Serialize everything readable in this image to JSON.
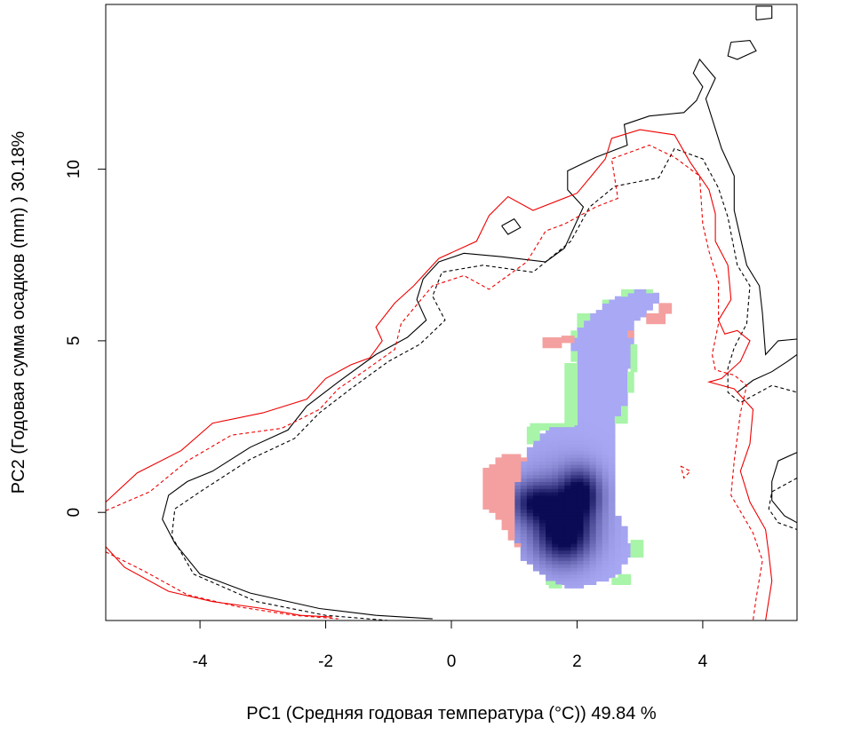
{
  "chart_data": {
    "type": "heatmap",
    "title": "",
    "xlabel": "PC1 (Средняя годовая температура (°C)) 49.84 %",
    "ylabel": "PC2 (Годовая сумма осадков  (mm) ) 30.18%",
    "xlim": [
      -5.5,
      5.5
    ],
    "ylim": [
      -3.15,
      14.8
    ],
    "xticks": [
      -4,
      -2,
      0,
      2,
      4
    ],
    "xtick_labels": [
      "-4",
      "-2",
      "0",
      "2",
      "4"
    ],
    "yticks": [
      0,
      5,
      10
    ],
    "ytick_labels": [
      "0",
      "5",
      "10"
    ],
    "grid": false,
    "legend": "none",
    "colors": {
      "contour_black": "#000000",
      "contour_red": "#ee0000",
      "only_a_cells": "#f4a0a0",
      "only_b_cells": "#a8f4a8",
      "overlap_low": "#a8a8f4",
      "overlap_high": "#0a0a55"
    },
    "contours": [
      {
        "color": "#000000",
        "dash": "solid",
        "points": [
          [
            -0.3,
            -3.1
          ],
          [
            -1.2,
            -3.0
          ],
          [
            -2.1,
            -2.8
          ],
          [
            -3.2,
            -2.35
          ],
          [
            -4,
            -1.8
          ],
          [
            -4.4,
            -0.9
          ],
          [
            -4.6,
            -0.2
          ],
          [
            -4.5,
            0.5
          ],
          [
            -4.2,
            0.9
          ],
          [
            -3.8,
            1.2
          ],
          [
            -3.2,
            1.9
          ],
          [
            -2.6,
            2.4
          ],
          [
            -2.3,
            3.1
          ],
          [
            -1.8,
            3.8
          ],
          [
            -1.2,
            4.6
          ],
          [
            -0.7,
            5.1
          ],
          [
            -0.4,
            5.6
          ],
          [
            -0.55,
            6.2
          ],
          [
            -0.45,
            6.8
          ],
          [
            -0.2,
            7.3
          ],
          [
            0.2,
            7.55
          ],
          [
            0.8,
            7.45
          ],
          [
            1.5,
            7.3
          ],
          [
            1.8,
            7.7
          ],
          [
            2.1,
            8.9
          ],
          [
            1.85,
            9.4
          ],
          [
            1.85,
            9.95
          ],
          [
            2.3,
            10.35
          ],
          [
            2.8,
            10.7
          ],
          [
            2.75,
            11.3
          ],
          [
            3.15,
            11.55
          ],
          [
            3.7,
            11.65
          ],
          [
            3.9,
            12.0
          ],
          [
            4.0,
            12.4
          ],
          [
            3.85,
            12.8
          ],
          [
            3.95,
            13.2
          ],
          [
            4.2,
            12.65
          ],
          [
            4.05,
            12.05
          ],
          [
            4.3,
            10.6
          ],
          [
            4.5,
            9.8
          ],
          [
            4.5,
            8.8
          ],
          [
            4.7,
            7.2
          ],
          [
            4.9,
            6.6
          ],
          [
            4.95,
            5.8
          ],
          [
            5.0,
            4.6
          ],
          [
            5.2,
            5.0
          ],
          [
            5.5,
            5.05
          ]
        ]
      },
      {
        "color": "#000000",
        "dash": "solid",
        "points": [
          [
            4.45,
            13.7
          ],
          [
            4.75,
            13.75
          ],
          [
            4.85,
            13.45
          ],
          [
            4.55,
            13.2
          ],
          [
            4.4,
            13.3
          ],
          [
            4.45,
            13.7
          ]
        ]
      },
      {
        "color": "#000000",
        "dash": "solid",
        "points": [
          [
            4.85,
            14.35
          ],
          [
            5.1,
            14.4
          ],
          [
            5.1,
            14.75
          ],
          [
            4.85,
            14.75
          ],
          [
            4.85,
            14.35
          ]
        ]
      },
      {
        "color": "#000000",
        "dash": "solid",
        "points": [
          [
            0.8,
            8.35
          ],
          [
            1.0,
            8.55
          ],
          [
            1.1,
            8.3
          ],
          [
            0.9,
            8.1
          ],
          [
            0.8,
            8.35
          ]
        ]
      },
      {
        "color": "#000000",
        "dash": "solid",
        "points": [
          [
            4.55,
            3.5
          ],
          [
            4.8,
            3.85
          ],
          [
            5.1,
            4.1
          ],
          [
            5.35,
            4.4
          ],
          [
            5.5,
            4.6
          ]
        ]
      },
      {
        "color": "#000000",
        "dash": "solid",
        "points": [
          [
            5.5,
            1.75
          ],
          [
            5.2,
            1.5
          ],
          [
            5.1,
            0.9
          ],
          [
            5.1,
            0.35
          ],
          [
            5.3,
            -0.1
          ],
          [
            5.5,
            -0.3
          ]
        ]
      },
      {
        "color": "#000000",
        "dash": "dashed",
        "points": [
          [
            -1.0,
            -3.15
          ],
          [
            -2.0,
            -3.0
          ],
          [
            -3.1,
            -2.6
          ],
          [
            -4.1,
            -1.8
          ],
          [
            -4.45,
            -0.7
          ],
          [
            -4.4,
            0.1
          ],
          [
            -4.0,
            0.6
          ],
          [
            -3.2,
            1.55
          ],
          [
            -2.5,
            2.15
          ],
          [
            -2.1,
            2.9
          ],
          [
            -1.6,
            3.6
          ],
          [
            -1.0,
            4.4
          ],
          [
            -0.5,
            4.9
          ],
          [
            -0.1,
            5.6
          ],
          [
            -0.3,
            6.3
          ],
          [
            -0.15,
            7.0
          ],
          [
            0.5,
            7.2
          ],
          [
            1.3,
            7.0
          ],
          [
            1.9,
            7.9
          ],
          [
            2.2,
            8.9
          ],
          [
            2.6,
            9.5
          ],
          [
            3.3,
            9.75
          ],
          [
            3.55,
            10.6
          ],
          [
            4.0,
            10.3
          ],
          [
            4.25,
            9.45
          ],
          [
            4.4,
            8.6
          ],
          [
            4.55,
            7.2
          ],
          [
            4.75,
            6.6
          ],
          [
            4.7,
            5.5
          ],
          [
            4.5,
            4.8
          ],
          [
            4.4,
            4.2
          ],
          [
            4.4,
            3.5
          ],
          [
            4.6,
            3.2
          ],
          [
            5.1,
            3.7
          ],
          [
            5.5,
            3.5
          ]
        ]
      },
      {
        "color": "#000000",
        "dash": "dashed",
        "points": [
          [
            5.5,
            1.0
          ],
          [
            5.1,
            0.6
          ],
          [
            5.05,
            0.1
          ],
          [
            5.2,
            -0.3
          ],
          [
            5.5,
            -0.5
          ]
        ]
      },
      {
        "color": "#ee0000",
        "dash": "solid",
        "points": [
          [
            -5.5,
            0.3
          ],
          [
            -5.0,
            1.15
          ],
          [
            -4.3,
            1.8
          ],
          [
            -3.8,
            2.6
          ],
          [
            -3.0,
            2.9
          ],
          [
            -2.3,
            3.3
          ],
          [
            -2.0,
            3.9
          ],
          [
            -1.6,
            4.3
          ],
          [
            -1.3,
            4.5
          ],
          [
            -1.1,
            5.0
          ],
          [
            -1.2,
            5.4
          ],
          [
            -0.9,
            6.1
          ],
          [
            -0.6,
            6.6
          ],
          [
            -0.2,
            7.4
          ],
          [
            0.4,
            7.9
          ],
          [
            0.6,
            8.65
          ],
          [
            0.9,
            9.2
          ],
          [
            1.3,
            8.8
          ],
          [
            2.0,
            9.3
          ],
          [
            2.25,
            9.85
          ],
          [
            2.45,
            10.3
          ],
          [
            2.55,
            10.9
          ],
          [
            3.0,
            11.15
          ],
          [
            3.55,
            11.0
          ],
          [
            3.8,
            10.2
          ],
          [
            4.1,
            9.4
          ],
          [
            4.2,
            8.7
          ],
          [
            4.2,
            7.9
          ],
          [
            4.4,
            7.2
          ],
          [
            4.45,
            6.2
          ],
          [
            4.25,
            5.6
          ],
          [
            4.35,
            5.2
          ],
          [
            4.55,
            5.3
          ],
          [
            4.75,
            5.0
          ],
          [
            4.6,
            4.4
          ],
          [
            4.3,
            3.9
          ],
          [
            4.1,
            3.8
          ],
          [
            4.5,
            3.6
          ],
          [
            4.8,
            3.0
          ],
          [
            4.75,
            2.0
          ],
          [
            4.6,
            1.2
          ],
          [
            4.75,
            0.3
          ],
          [
            5.0,
            -0.5
          ],
          [
            5.05,
            -1.2
          ],
          [
            5.1,
            -2.0
          ],
          [
            5.0,
            -3.15
          ]
        ]
      },
      {
        "color": "#ee0000",
        "dash": "solid",
        "points": [
          [
            -5.5,
            -1.0
          ],
          [
            -5.2,
            -1.6
          ],
          [
            -4.5,
            -2.3
          ],
          [
            -3.8,
            -2.6
          ],
          [
            -3.0,
            -2.8
          ],
          [
            -2.4,
            -3.0
          ],
          [
            -1.9,
            -3.05
          ]
        ]
      },
      {
        "color": "#ee0000",
        "dash": "dashed",
        "points": [
          [
            -5.5,
            0.05
          ],
          [
            -4.8,
            0.6
          ],
          [
            -4.2,
            1.5
          ],
          [
            -3.5,
            2.25
          ],
          [
            -2.7,
            2.45
          ],
          [
            -2.1,
            3.0
          ],
          [
            -1.8,
            3.6
          ],
          [
            -1.4,
            4.1
          ],
          [
            -0.9,
            4.75
          ],
          [
            -0.8,
            5.5
          ],
          [
            -0.3,
            6.6
          ],
          [
            0.2,
            6.9
          ],
          [
            0.6,
            6.5
          ],
          [
            1.2,
            7.3
          ],
          [
            1.5,
            8.2
          ],
          [
            1.8,
            8.4
          ],
          [
            2.3,
            8.9
          ],
          [
            2.65,
            9.15
          ],
          [
            2.55,
            10.3
          ],
          [
            3.15,
            10.7
          ],
          [
            3.55,
            10.35
          ],
          [
            3.95,
            9.8
          ],
          [
            4.0,
            8.4
          ],
          [
            4.1,
            7.6
          ],
          [
            4.25,
            6.7
          ],
          [
            4.25,
            5.5
          ],
          [
            4.15,
            4.6
          ],
          [
            4.2,
            4.15
          ],
          [
            4.5,
            4.0
          ],
          [
            4.7,
            3.7
          ],
          [
            4.6,
            2.9
          ],
          [
            4.55,
            2.2
          ],
          [
            4.5,
            1.5
          ],
          [
            4.45,
            0.5
          ],
          [
            4.8,
            -0.6
          ],
          [
            4.95,
            -1.4
          ],
          [
            4.85,
            -2.5
          ],
          [
            4.8,
            -3.15
          ]
        ]
      },
      {
        "color": "#ee0000",
        "dash": "dashed",
        "points": [
          [
            -5.5,
            -1.15
          ],
          [
            -4.9,
            -1.7
          ],
          [
            -4.2,
            -2.4
          ],
          [
            -3.4,
            -2.75
          ],
          [
            -2.5,
            -3.0
          ],
          [
            -1.8,
            -3.1
          ]
        ]
      },
      {
        "color": "#ee0000",
        "dash": "dashed",
        "points": [
          [
            3.65,
            1.35
          ],
          [
            3.8,
            1.2
          ],
          [
            3.7,
            1.0
          ],
          [
            3.65,
            1.35
          ]
        ]
      }
    ],
    "cell_size": 0.1
  }
}
